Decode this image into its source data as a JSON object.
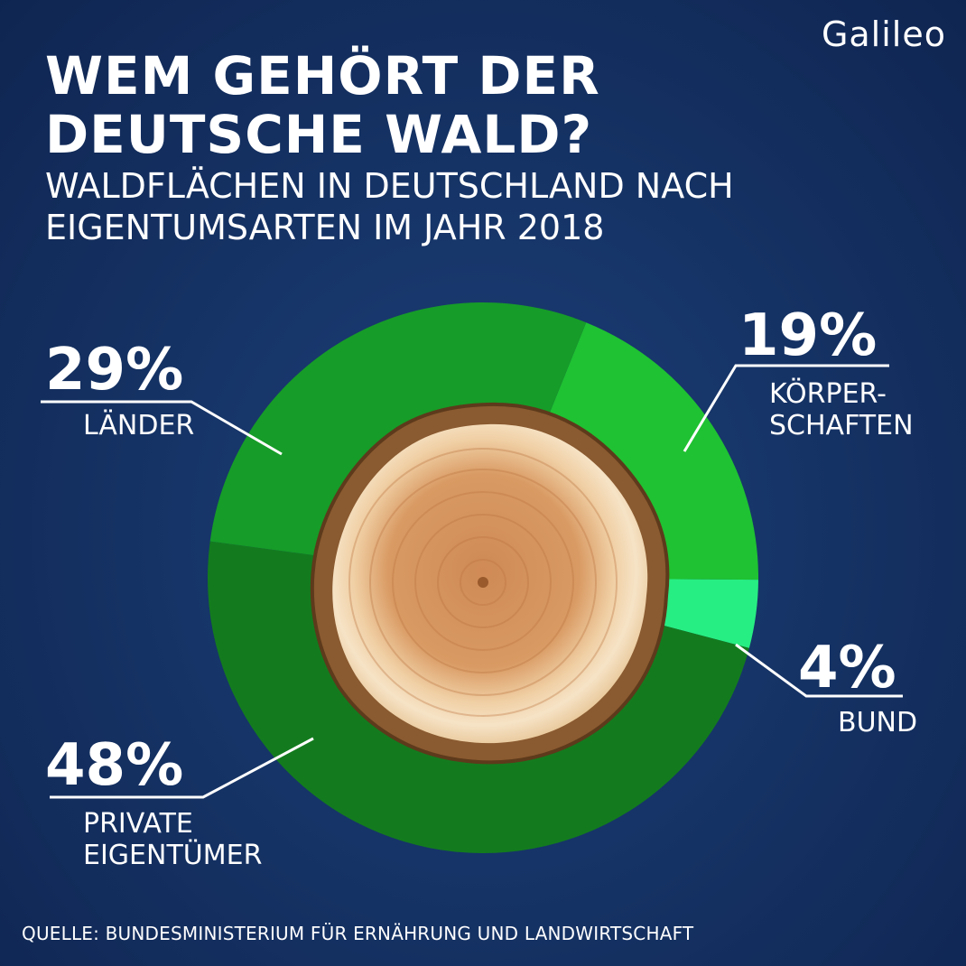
{
  "logo": "Galileo",
  "title_line1": "WEM GEHÖRT DER",
  "title_line2": "DEUTSCHE WALD?",
  "subtitle_line1": "WALDFLÄCHEN IN DEUTSCHLAND NACH",
  "subtitle_line2": "EIGENTUMSARTEN IM JAHR 2018",
  "source": "QUELLE: BUNDESMINISTERIUM FÜR ERNÄHRUNG UND LANDWIRTSCHAFT",
  "chart_data": {
    "type": "pie",
    "donut": true,
    "center_image": "tree-stump",
    "slices": [
      {
        "label_lines": [
          "KÖRPER-",
          "SCHAFTEN"
        ],
        "percent_label": "19%",
        "value": 19,
        "color": "#1fc232"
      },
      {
        "label_lines": [
          "BUND"
        ],
        "percent_label": "4%",
        "value": 4,
        "color": "#27ee82"
      },
      {
        "label_lines": [
          "PRIVATE",
          "EIGENTÜMER"
        ],
        "percent_label": "48%",
        "value": 48,
        "color": "#137b1e"
      },
      {
        "label_lines": [
          "LÄNDER"
        ],
        "percent_label": "29%",
        "value": 29,
        "color": "#169c28"
      }
    ]
  }
}
